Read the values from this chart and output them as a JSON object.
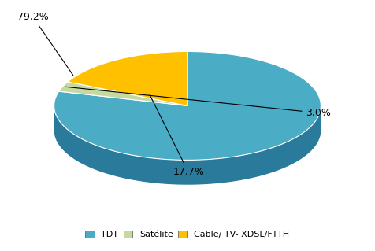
{
  "title": "",
  "labels": [
    "TDT",
    "Satélite",
    "Cable/ TV- XDSL/FTTH"
  ],
  "values": [
    79.2,
    3.0,
    17.7
  ],
  "colors": [
    "#4BACC6",
    "#C6D9A0",
    "#FFC000"
  ],
  "shadow_colors": [
    "#2A7A9B",
    "#8AAA70",
    "#A07800"
  ],
  "pct_labels": [
    "79,2%",
    "3,0%",
    "17,7%"
  ],
  "legend_colors": [
    "#4BACC6",
    "#C6D9A0",
    "#FFC000"
  ],
  "background_color": "#ffffff"
}
